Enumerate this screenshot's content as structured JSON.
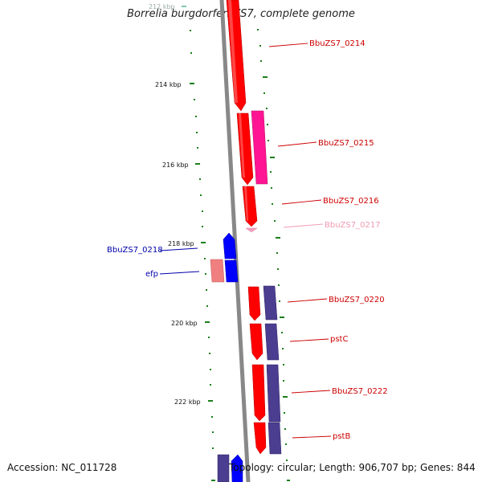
{
  "title": "Borrelia burgdorferi ZS7, complete genome",
  "footer": {
    "accession": "Accession: NC_011728",
    "summary": "Topology: circular; Length: 906,707 bp; Genes: 844"
  },
  "ruler_labels": [
    "212 kbp",
    "214 kbp",
    "216 kbp",
    "218 kbp",
    "220 kbp",
    "222 kbp"
  ],
  "gene_labels": [
    {
      "text": "BbuZS7_0214",
      "color": "#cc0000"
    },
    {
      "text": "BbuZS7_0215",
      "color": "#cc0000"
    },
    {
      "text": "BbuZS7_0216",
      "color": "#cc0000"
    },
    {
      "text": "BbuZS7_0217",
      "color": "#f19ab1"
    },
    {
      "text": "BbuZS7_0218",
      "color": "#0000aa"
    },
    {
      "text": "efp",
      "color": "#0000aa"
    },
    {
      "text": "BbuZS7_0220",
      "color": "#cc0000"
    },
    {
      "text": "pstC",
      "color": "#cc0000"
    },
    {
      "text": "BbuZS7_0222",
      "color": "#cc0000"
    },
    {
      "text": "pstB",
      "color": "#cc0000"
    }
  ],
  "colors": {
    "forward_cds": "#ff0000",
    "reverse_cds": "#0000ff",
    "forward_rna": "#ff1493",
    "reverse_rna": "#f08080",
    "forward_other": "#4b3d8f",
    "tick": "#1a7f1a",
    "backbone": "#808080"
  }
}
